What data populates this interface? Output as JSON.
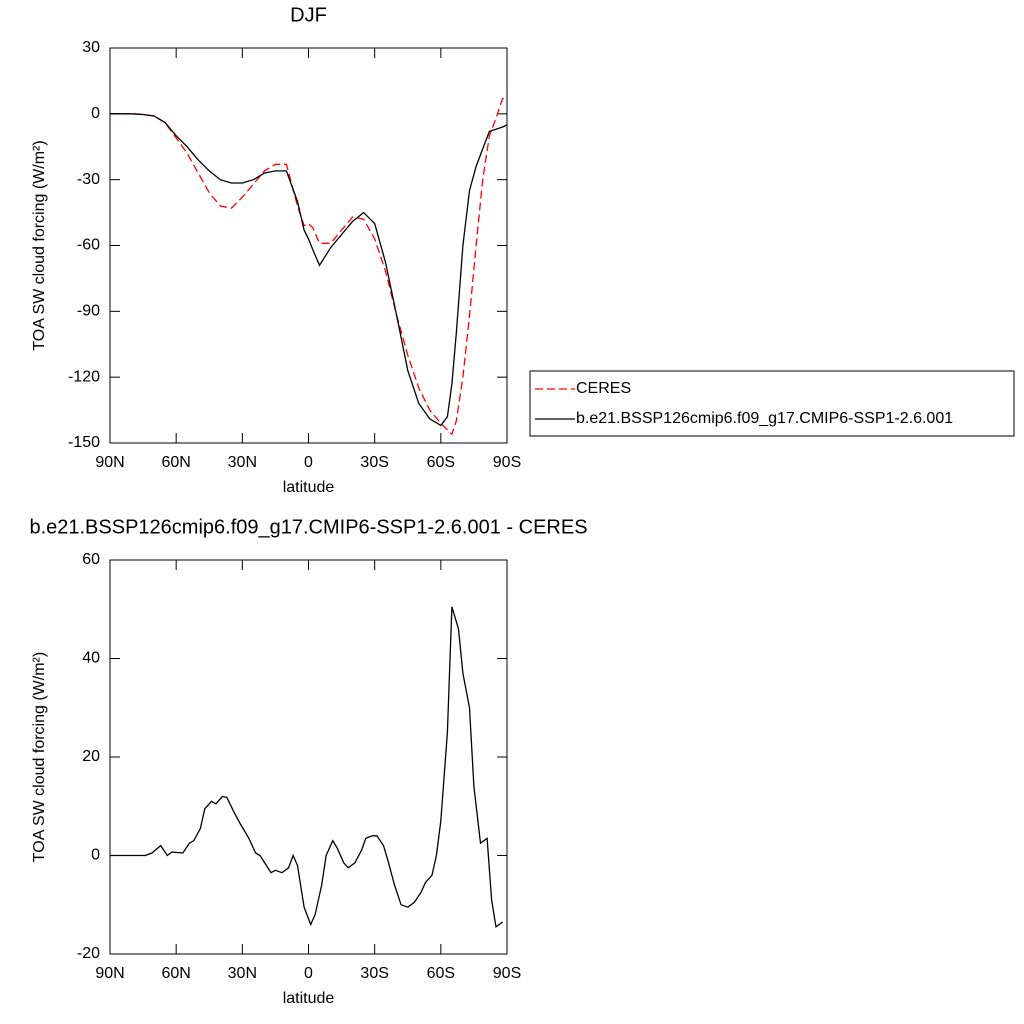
{
  "chart_data": [
    {
      "type": "line",
      "title": "DJF",
      "x_label": "latitude",
      "y_label": "TOA SW cloud forcing (W/m²)",
      "x": [
        90,
        85,
        80,
        75,
        70,
        65,
        60,
        55,
        50,
        45,
        40,
        35,
        30,
        25,
        20,
        15,
        10,
        5,
        2,
        0,
        -2,
        -5,
        -10,
        -15,
        -20,
        -25,
        -30,
        -35,
        -40,
        -45,
        -50,
        -55,
        -60,
        -63,
        -65,
        -67,
        -70,
        -73,
        -76,
        -79,
        -82,
        -85,
        -88,
        -90
      ],
      "series": [
        {
          "name": "CERES",
          "color": "#ff0000",
          "line_style": "dashed",
          "values": [
            0,
            0,
            0,
            -0.3,
            -1,
            -4,
            -11,
            -18,
            -27,
            -36,
            -42,
            -43,
            -38,
            -32,
            -26,
            -23,
            -23,
            -42,
            -51,
            -50,
            -52,
            -59,
            -59,
            -53,
            -47,
            -48,
            -57,
            -72,
            -92,
            -110,
            -125,
            -135,
            -141,
            -144,
            -146,
            -140,
            -120,
            -92,
            -60,
            -30,
            -10,
            -2,
            7,
            7
          ]
        },
        {
          "name": "b.e21.BSSP126cmip6.f09_g17.CMIP6-SSP1-2.6.001",
          "color": "#000000",
          "line_style": "solid",
          "values": [
            0,
            0,
            0,
            -0.3,
            -1,
            -4,
            -10,
            -15,
            -21,
            -26,
            -30,
            -31.5,
            -31.5,
            -30,
            -27,
            -26,
            -26,
            -40,
            -53,
            -57,
            -62,
            -69,
            -61,
            -55,
            -49,
            -45,
            -50,
            -68,
            -92,
            -117,
            -132,
            -139,
            -142,
            -138,
            -123,
            -100,
            -60,
            -35,
            -24,
            -16,
            -8,
            -7,
            -6,
            -5
          ]
        }
      ],
      "xlim": [
        90,
        -90
      ],
      "ylim": [
        -150,
        30
      ],
      "xticks": [
        {
          "value": 90,
          "label": "90N"
        },
        {
          "value": 60,
          "label": "60N"
        },
        {
          "value": 30,
          "label": "30N"
        },
        0,
        {
          "value": -30,
          "label": "30S"
        },
        {
          "value": -60,
          "label": "60S"
        },
        {
          "value": -90,
          "label": "90S"
        }
      ],
      "yticks": [
        30,
        0,
        -30,
        -60,
        -90,
        -120,
        -150
      ]
    },
    {
      "type": "line",
      "title": "b.e21.BSSP126cmip6.f09_g17.CMIP6-SSP1-2.6.001 - CERES",
      "x_label": "latitude",
      "y_label": "TOA SW cloud forcing (W/m²)",
      "x": [
        90,
        85,
        80,
        74,
        71,
        67,
        64,
        62,
        57,
        54,
        52,
        49,
        47,
        44,
        42,
        39,
        37,
        34,
        31,
        27,
        24,
        22,
        17,
        15,
        12,
        9,
        7,
        5,
        2,
        -1,
        -3,
        -6,
        -8,
        -11,
        -13,
        -16,
        -18,
        -21,
        -24,
        -26,
        -29,
        -31,
        -34,
        -36,
        -39,
        -42,
        -45,
        -48,
        -51,
        -53,
        -56,
        -58,
        -60,
        -63,
        -65,
        -68,
        -70,
        -73,
        -75,
        -78,
        -81,
        -83,
        -85,
        -88
      ],
      "series": [
        {
          "name": null,
          "color": "#000000",
          "line_style": "solid",
          "values": [
            0,
            0,
            0,
            0,
            0.5,
            2,
            0,
            0.7,
            0.5,
            2.5,
            3,
            5.5,
            9.5,
            11,
            10.5,
            12,
            11.8,
            9,
            6.5,
            3.5,
            0.5,
            0,
            -3.5,
            -3,
            -3.5,
            -2.5,
            0,
            -2,
            -10.5,
            -14,
            -12,
            -6,
            0,
            3,
            1.5,
            -1.5,
            -2.5,
            -1.5,
            1,
            3.5,
            4,
            4,
            2,
            -1,
            -6,
            -10,
            -10.5,
            -9.5,
            -7.5,
            -5.5,
            -4,
            0,
            7,
            25,
            50.5,
            46,
            37,
            30,
            14,
            2.5,
            3.5,
            -9,
            -14.5,
            -13.5
          ]
        }
      ],
      "xlim": [
        90,
        -90
      ],
      "ylim": [
        -20,
        60
      ],
      "xticks": [
        {
          "value": 90,
          "label": "90N"
        },
        {
          "value": 60,
          "label": "60N"
        },
        {
          "value": 30,
          "label": "30N"
        },
        0,
        {
          "value": -30,
          "label": "30S"
        },
        {
          "value": -60,
          "label": "60S"
        },
        {
          "value": -90,
          "label": "90S"
        }
      ],
      "yticks": [
        60,
        40,
        20,
        0,
        -20
      ]
    }
  ]
}
